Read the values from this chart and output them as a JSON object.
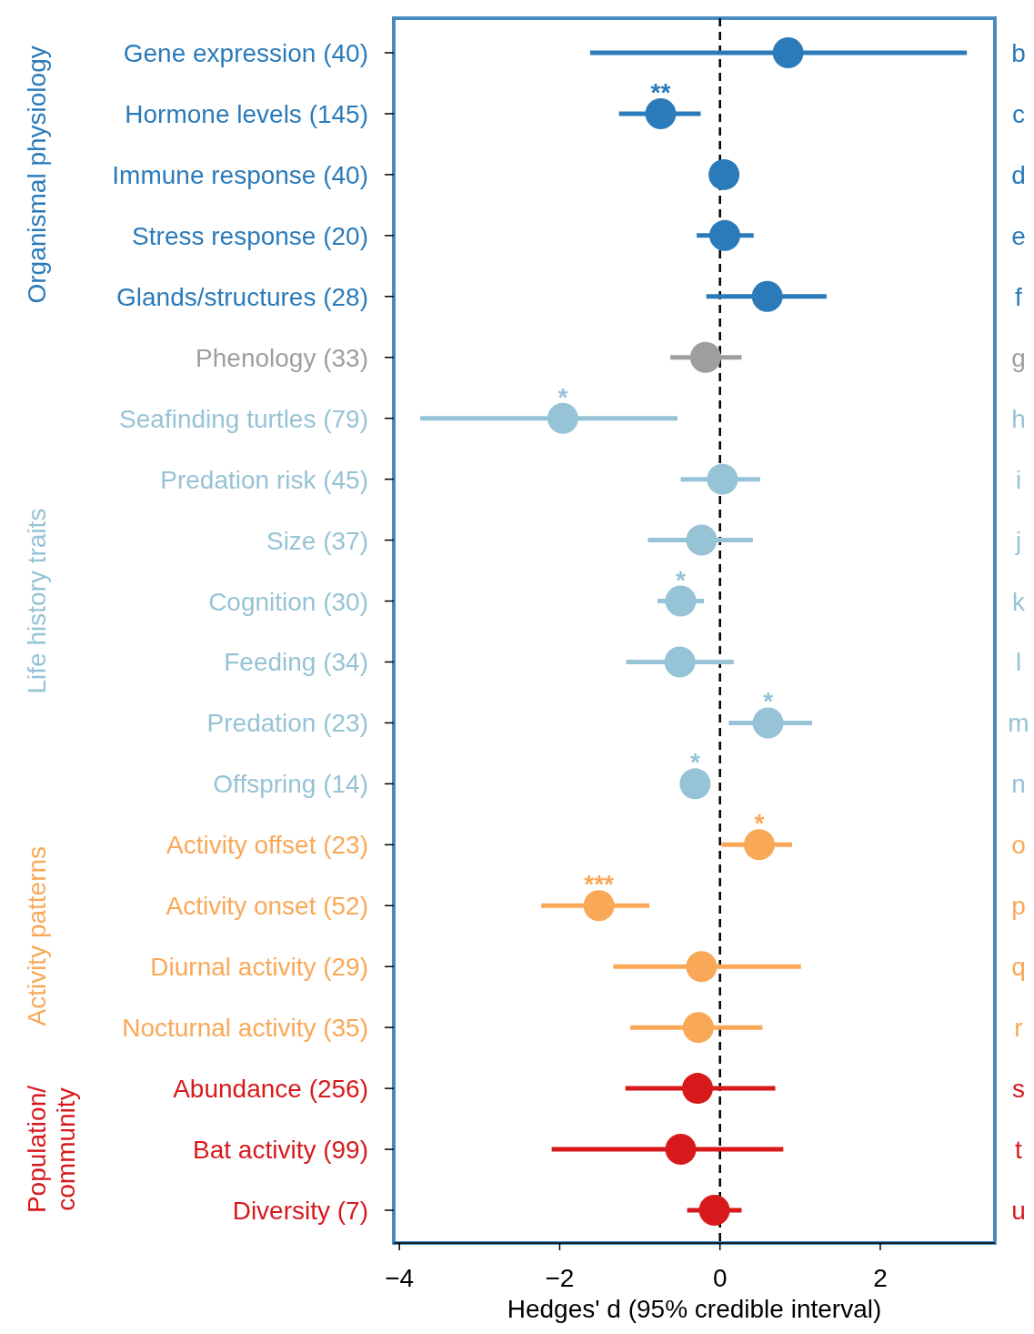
{
  "chart_data": {
    "type": "scatter",
    "orientation": "horizontal",
    "marker": "circle",
    "grid": false,
    "categories": [
      "Gene expression (40)",
      "Hormone levels (145)",
      "Immune response (40)",
      "Stress response (20)",
      "Glands/structures (28)",
      "Phenology (33)",
      "Seafinding turtles (79)",
      "Predation risk (45)",
      "Size (37)",
      "Cognition (30)",
      "Feeding (34)",
      "Predation (23)",
      "Offspring (14)",
      "Activity offset (23)",
      "Activity onset (52)",
      "Diurnal activity (29)",
      "Nocturnal activity (35)",
      "Abundance (256)",
      "Bat activity (99)",
      "Diversity (7)"
    ],
    "series": [
      {
        "name": "Organismal physiology",
        "color": "#2b7bba",
        "values": [
          0.85,
          -0.74,
          0.05,
          0.06,
          0.59,
          null,
          null,
          null,
          null,
          null,
          null,
          null,
          null,
          null,
          null,
          null,
          null,
          null,
          null,
          null
        ],
        "errors": [
          [
            -1.62,
            3.08
          ],
          [
            -1.26,
            -0.24
          ],
          null,
          [
            -0.29,
            0.42
          ],
          [
            -0.17,
            1.33
          ],
          null,
          null,
          null,
          null,
          null,
          null,
          null,
          null,
          null,
          null,
          null,
          null,
          null,
          null,
          null
        ],
        "value_labels": [
          null,
          "**",
          null,
          null,
          null,
          null,
          null,
          null,
          null,
          null,
          null,
          null,
          null,
          null,
          null,
          null,
          null,
          null,
          null,
          null
        ]
      },
      {
        "color": "#9e9e9e",
        "values": [
          null,
          null,
          null,
          null,
          null,
          -0.18,
          null,
          null,
          null,
          null,
          null,
          null,
          null,
          null,
          null,
          null,
          null,
          null,
          null,
          null
        ],
        "errors": [
          null,
          null,
          null,
          null,
          null,
          [
            -0.62,
            0.27
          ],
          null,
          null,
          null,
          null,
          null,
          null,
          null,
          null,
          null,
          null,
          null,
          null,
          null,
          null
        ]
      },
      {
        "name": "Life history traits",
        "color": "#96c3d6",
        "values": [
          null,
          null,
          null,
          null,
          null,
          null,
          -1.96,
          0.03,
          -0.23,
          -0.49,
          -0.5,
          0.6,
          -0.31,
          null,
          null,
          null,
          null,
          null,
          null,
          null
        ],
        "errors": [
          null,
          null,
          null,
          null,
          null,
          null,
          [
            -3.74,
            -0.53
          ],
          [
            -0.49,
            0.5
          ],
          [
            -0.9,
            0.41
          ],
          [
            -0.78,
            -0.2
          ],
          [
            -1.17,
            0.17
          ],
          [
            0.11,
            1.15
          ],
          null,
          null,
          null,
          null,
          null,
          null,
          null,
          null
        ],
        "value_labels": [
          null,
          null,
          null,
          null,
          null,
          null,
          "*",
          null,
          null,
          "*",
          null,
          "*",
          "*",
          null,
          null,
          null,
          null,
          null,
          null,
          null
        ]
      },
      {
        "name": "Activity patterns",
        "color": "#f9a857",
        "values": [
          null,
          null,
          null,
          null,
          null,
          null,
          null,
          null,
          null,
          null,
          null,
          null,
          null,
          0.49,
          -1.51,
          -0.23,
          -0.27,
          null,
          null,
          null
        ],
        "errors": [
          null,
          null,
          null,
          null,
          null,
          null,
          null,
          null,
          null,
          null,
          null,
          null,
          null,
          [
            0.02,
            0.9
          ],
          [
            -2.23,
            -0.88
          ],
          [
            -1.33,
            1.01
          ],
          [
            -1.12,
            0.53
          ],
          null,
          null,
          null
        ],
        "value_labels": [
          null,
          null,
          null,
          null,
          null,
          null,
          null,
          null,
          null,
          null,
          null,
          null,
          null,
          "*",
          "***",
          null,
          null,
          null,
          null,
          null
        ]
      },
      {
        "name": "Population/ community",
        "color": "#d7191c",
        "values": [
          null,
          null,
          null,
          null,
          null,
          null,
          null,
          null,
          null,
          null,
          null,
          null,
          null,
          null,
          null,
          null,
          null,
          -0.28,
          -0.49,
          -0.07
        ],
        "errors": [
          null,
          null,
          null,
          null,
          null,
          null,
          null,
          null,
          null,
          null,
          null,
          null,
          null,
          null,
          null,
          null,
          null,
          [
            -1.18,
            0.69
          ],
          [
            -2.1,
            0.79
          ],
          [
            -0.41,
            0.27
          ]
        ]
      }
    ],
    "xlim": [
      -4.07,
      3.43
    ],
    "xticks": [
      {
        "value": -4,
        "label": "−4"
      },
      {
        "value": -2,
        "label": "−2"
      },
      0,
      2
    ],
    "xlabel": "Hedges' d (95% credible interval)",
    "ref_lines": [
      {
        "axis": "x",
        "value": 0,
        "color": "#000000",
        "line_style": "dashed"
      }
    ],
    "annotations": [
      "b",
      "c",
      "d",
      "e",
      "f",
      "g",
      "h",
      "i",
      "j",
      "k",
      "l",
      "m",
      "n",
      "o",
      "p",
      "q",
      "r",
      "s",
      "t",
      "u"
    ]
  }
}
